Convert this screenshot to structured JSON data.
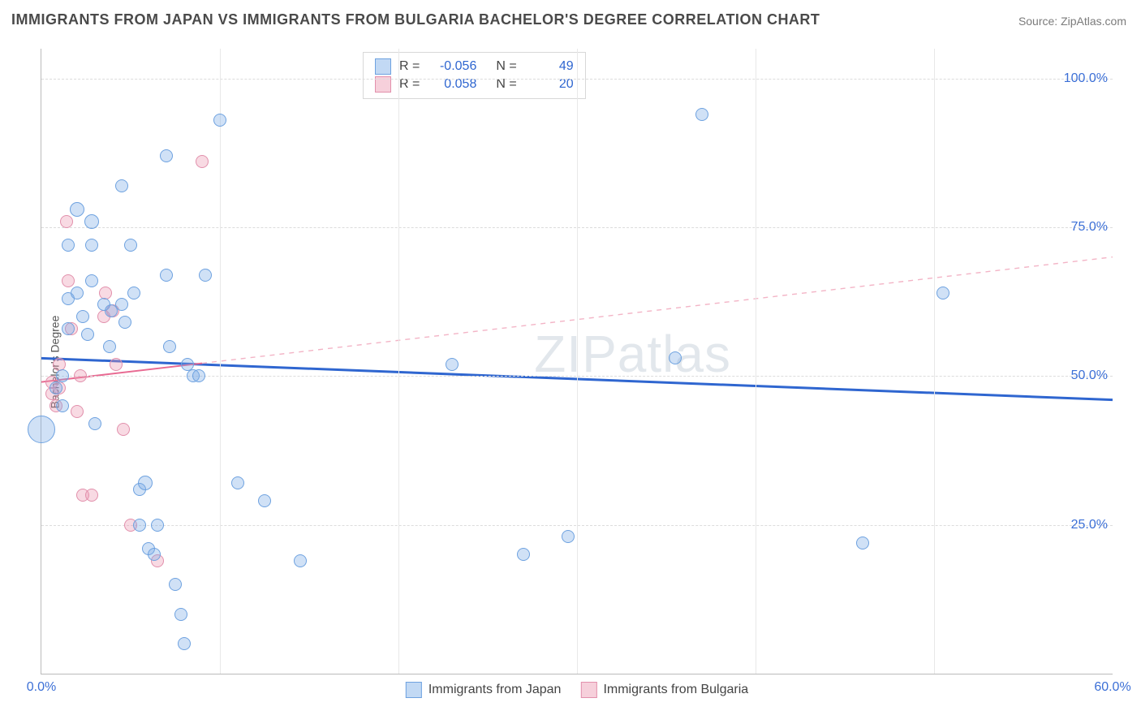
{
  "title": "IMMIGRANTS FROM JAPAN VS IMMIGRANTS FROM BULGARIA BACHELOR'S DEGREE CORRELATION CHART",
  "source": "Source: ZipAtlas.com",
  "ylabel": "Bachelor's Degree",
  "watermark": "ZIPatlas",
  "chart": {
    "type": "scatter",
    "background_color": "#ffffff",
    "grid_color": "#dcdcdc",
    "xlim": [
      0,
      60
    ],
    "ylim": [
      0,
      105
    ],
    "xticks": [
      {
        "v": 0,
        "label": "0.0%"
      },
      {
        "v": 60,
        "label": "60.0%"
      }
    ],
    "xgrid": [
      10,
      20,
      30,
      40,
      50
    ],
    "yticks": [
      {
        "v": 25,
        "label": "25.0%"
      },
      {
        "v": 50,
        "label": "50.0%"
      },
      {
        "v": 75,
        "label": "75.0%"
      },
      {
        "v": 100,
        "label": "100.0%"
      }
    ],
    "series": [
      {
        "name": "Immigrants from Japan",
        "color_fill": "rgba(120,170,230,0.35)",
        "color_stroke": "#6ea2e0",
        "R": "-0.056",
        "N": "49",
        "trend": {
          "y_at_x0": 53,
          "y_at_xmax": 46,
          "style": "solid",
          "width": 3,
          "solid_until_x": 60,
          "color": "#2f66d0"
        },
        "points": [
          {
            "x": 0,
            "y": 41,
            "r": 16
          },
          {
            "x": 0.8,
            "y": 48,
            "r": 7
          },
          {
            "x": 1.2,
            "y": 50,
            "r": 7
          },
          {
            "x": 1.2,
            "y": 45,
            "r": 7
          },
          {
            "x": 1.5,
            "y": 63,
            "r": 7
          },
          {
            "x": 1.5,
            "y": 58,
            "r": 7
          },
          {
            "x": 1.5,
            "y": 72,
            "r": 7
          },
          {
            "x": 2.0,
            "y": 78,
            "r": 8
          },
          {
            "x": 2.0,
            "y": 64,
            "r": 7
          },
          {
            "x": 2.3,
            "y": 60,
            "r": 7
          },
          {
            "x": 2.6,
            "y": 57,
            "r": 7
          },
          {
            "x": 2.8,
            "y": 66,
            "r": 7
          },
          {
            "x": 2.8,
            "y": 72,
            "r": 7
          },
          {
            "x": 2.8,
            "y": 76,
            "r": 8
          },
          {
            "x": 3.5,
            "y": 62,
            "r": 7
          },
          {
            "x": 3.8,
            "y": 55,
            "r": 7
          },
          {
            "x": 3.9,
            "y": 61,
            "r": 7
          },
          {
            "x": 4.5,
            "y": 82,
            "r": 7
          },
          {
            "x": 4.5,
            "y": 62,
            "r": 7
          },
          {
            "x": 4.7,
            "y": 59,
            "r": 7
          },
          {
            "x": 5.0,
            "y": 72,
            "r": 7
          },
          {
            "x": 5.2,
            "y": 64,
            "r": 7
          },
          {
            "x": 3.0,
            "y": 42,
            "r": 7
          },
          {
            "x": 5.5,
            "y": 31,
            "r": 7
          },
          {
            "x": 5.8,
            "y": 32,
            "r": 8
          },
          {
            "x": 5.5,
            "y": 25,
            "r": 7
          },
          {
            "x": 6.0,
            "y": 21,
            "r": 7
          },
          {
            "x": 6.3,
            "y": 20,
            "r": 7
          },
          {
            "x": 6.5,
            "y": 25,
            "r": 7
          },
          {
            "x": 7.0,
            "y": 87,
            "r": 7
          },
          {
            "x": 7.0,
            "y": 67,
            "r": 7
          },
          {
            "x": 7.2,
            "y": 55,
            "r": 7
          },
          {
            "x": 7.5,
            "y": 15,
            "r": 7
          },
          {
            "x": 7.8,
            "y": 10,
            "r": 7
          },
          {
            "x": 8.0,
            "y": 5,
            "r": 7
          },
          {
            "x": 8.2,
            "y": 52,
            "r": 7
          },
          {
            "x": 8.5,
            "y": 50,
            "r": 7
          },
          {
            "x": 8.8,
            "y": 50,
            "r": 7
          },
          {
            "x": 9.2,
            "y": 67,
            "r": 7
          },
          {
            "x": 10.0,
            "y": 93,
            "r": 7
          },
          {
            "x": 11.0,
            "y": 32,
            "r": 7
          },
          {
            "x": 12.5,
            "y": 29,
            "r": 7
          },
          {
            "x": 14.5,
            "y": 19,
            "r": 7
          },
          {
            "x": 23.0,
            "y": 52,
            "r": 7
          },
          {
            "x": 27.0,
            "y": 20,
            "r": 7
          },
          {
            "x": 29.5,
            "y": 23,
            "r": 7
          },
          {
            "x": 35.5,
            "y": 53,
            "r": 7
          },
          {
            "x": 37.0,
            "y": 94,
            "r": 7
          },
          {
            "x": 46.0,
            "y": 22,
            "r": 7
          },
          {
            "x": 50.5,
            "y": 64,
            "r": 7
          }
        ]
      },
      {
        "name": "Immigrants from Bulgaria",
        "color_fill": "rgba(235,150,175,0.35)",
        "color_stroke": "#e290ac",
        "R": "0.058",
        "N": "20",
        "trend": {
          "y_at_x0": 49,
          "y_at_xmax": 70,
          "style": "solid-then-dashed",
          "width": 2,
          "solid_until_x": 9,
          "color": "#e86a92",
          "dash_color": "#f3b4c6"
        },
        "points": [
          {
            "x": 0.6,
            "y": 49,
            "r": 7
          },
          {
            "x": 0.6,
            "y": 47,
            "r": 7
          },
          {
            "x": 0.8,
            "y": 45,
            "r": 7
          },
          {
            "x": 1.0,
            "y": 52,
            "r": 7
          },
          {
            "x": 1.0,
            "y": 48,
            "r": 7
          },
          {
            "x": 1.4,
            "y": 76,
            "r": 7
          },
          {
            "x": 1.5,
            "y": 66,
            "r": 7
          },
          {
            "x": 1.7,
            "y": 58,
            "r": 7
          },
          {
            "x": 2.0,
            "y": 44,
            "r": 7
          },
          {
            "x": 2.2,
            "y": 50,
            "r": 7
          },
          {
            "x": 2.3,
            "y": 30,
            "r": 7
          },
          {
            "x": 2.8,
            "y": 30,
            "r": 7
          },
          {
            "x": 3.5,
            "y": 60,
            "r": 7
          },
          {
            "x": 3.6,
            "y": 64,
            "r": 7
          },
          {
            "x": 4.0,
            "y": 61,
            "r": 7
          },
          {
            "x": 4.2,
            "y": 52,
            "r": 7
          },
          {
            "x": 4.6,
            "y": 41,
            "r": 7
          },
          {
            "x": 5.0,
            "y": 25,
            "r": 7
          },
          {
            "x": 6.5,
            "y": 19,
            "r": 7
          },
          {
            "x": 9.0,
            "y": 86,
            "r": 7
          }
        ]
      }
    ],
    "legend_top": {
      "R_label": "R =",
      "N_label": "N ="
    },
    "legend_bottom": true
  }
}
